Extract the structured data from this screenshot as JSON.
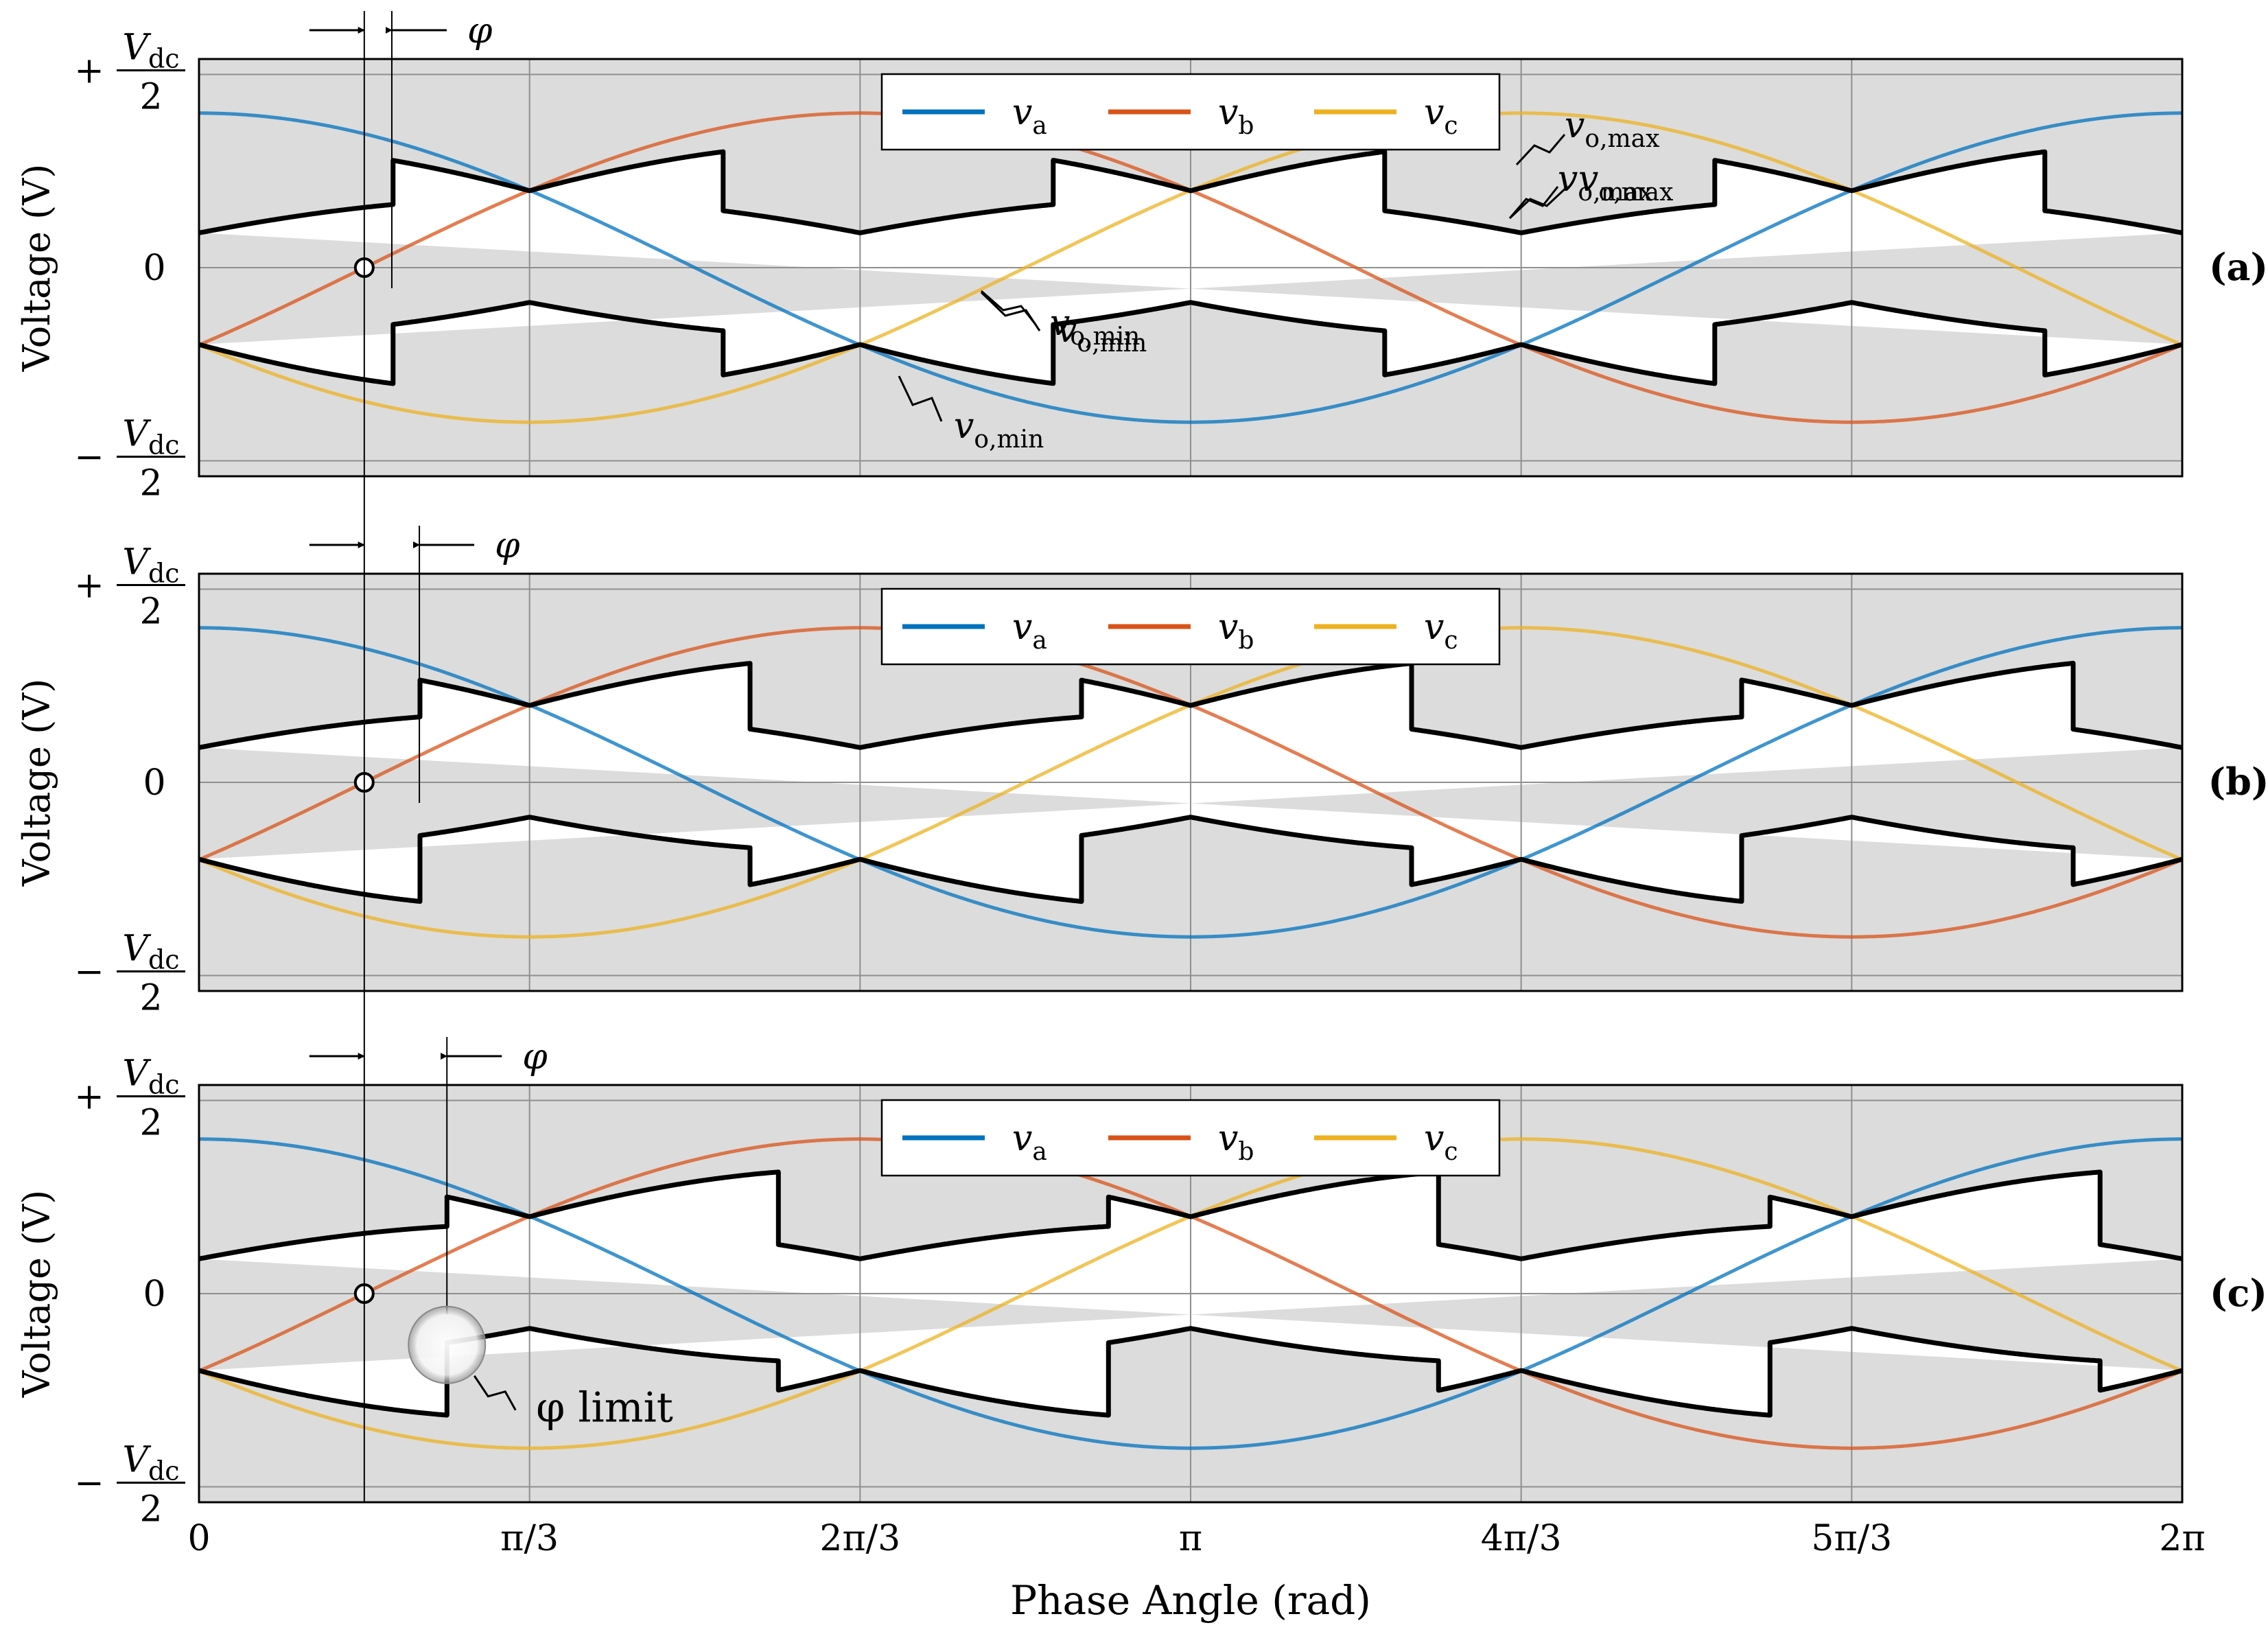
{
  "figure": {
    "xlabel": "Phase Angle (rad)",
    "ylabel": "Voltage (V)",
    "x_tick_labels": [
      "0",
      "π/3",
      "2π/3",
      "π",
      "4π/3",
      "5π/3",
      "2π"
    ],
    "y_tick_top": {
      "sign": "+",
      "num": "V",
      "sub": "dc",
      "den": "2"
    },
    "y_tick_mid": "0",
    "y_tick_bottom": {
      "sign": "−",
      "num": "V",
      "sub": "dc",
      "den": "2"
    },
    "phase_shift_symbol": "φ",
    "legend": [
      {
        "base": "v",
        "sub": "a"
      },
      {
        "base": "v",
        "sub": "b"
      },
      {
        "base": "v",
        "sub": "c"
      }
    ],
    "annotation_vmax": {
      "base": "v",
      "sub": "o,max"
    },
    "annotation_vmin": {
      "base": "v",
      "sub": "o,min"
    },
    "phi_limit_label": "φ limit"
  },
  "chart_data": [
    {
      "panel": "(a)",
      "type": "line",
      "x_unit": "rad",
      "xlim": [
        0,
        6.2832
      ],
      "ylim": [
        -1.08,
        1.08
      ],
      "y_ticks": [
        -1,
        0,
        1
      ],
      "grid": true,
      "legend_position": "top-center",
      "phase_ref": 0.5236,
      "phase_shift_rad": 0.0873,
      "series": [
        {
          "name": "v_a",
          "color": "#0072BD",
          "function": "0.8*cos(x)"
        },
        {
          "name": "v_b",
          "color": "#D95319",
          "function": "0.8*cos(x-2π/3)"
        },
        {
          "name": "v_c",
          "color": "#EDB120",
          "function": "0.8*cos(x+2π/3)"
        },
        {
          "name": "v_o,max",
          "color": "#000000",
          "rule": "max(v_a,v_b,v_c) before switching edge, -min(v_a,v_b,v_c) elsewhere"
        },
        {
          "name": "v_o,min",
          "color": "#000000",
          "rule": "-max(v_a,v_b,v_c) before switching edge, min(v_a,v_b,v_c) elsewhere"
        }
      ]
    },
    {
      "panel": "(b)",
      "type": "line",
      "x_unit": "rad",
      "xlim": [
        0,
        6.2832
      ],
      "ylim": [
        -1.08,
        1.08
      ],
      "y_ticks": [
        -1,
        0,
        1
      ],
      "grid": true,
      "legend_position": "top-center",
      "phase_ref": 0.5236,
      "phase_shift_rad": 0.1745,
      "series": [
        {
          "name": "v_a",
          "color": "#0072BD",
          "function": "0.8*cos(x)"
        },
        {
          "name": "v_b",
          "color": "#D95319",
          "function": "0.8*cos(x-2π/3)"
        },
        {
          "name": "v_c",
          "color": "#EDB120",
          "function": "0.8*cos(x+2π/3)"
        },
        {
          "name": "v_o,max",
          "color": "#000000"
        },
        {
          "name": "v_o,min",
          "color": "#000000"
        }
      ]
    },
    {
      "panel": "(c)",
      "type": "line",
      "x_unit": "rad",
      "xlim": [
        0,
        6.2832
      ],
      "ylim": [
        -1.08,
        1.08
      ],
      "y_ticks": [
        -1,
        0,
        1
      ],
      "grid": true,
      "legend_position": "top-center",
      "phase_ref": 0.5236,
      "phase_shift_rad": 0.2618,
      "series": [
        {
          "name": "v_a",
          "color": "#0072BD",
          "function": "0.8*cos(x)"
        },
        {
          "name": "v_b",
          "color": "#D95319",
          "function": "0.8*cos(x-2π/3)"
        },
        {
          "name": "v_c",
          "color": "#EDB120",
          "function": "0.8*cos(x+2π/3)"
        },
        {
          "name": "v_o,max",
          "color": "#000000"
        },
        {
          "name": "v_o,min",
          "color": "#000000"
        }
      ]
    }
  ]
}
